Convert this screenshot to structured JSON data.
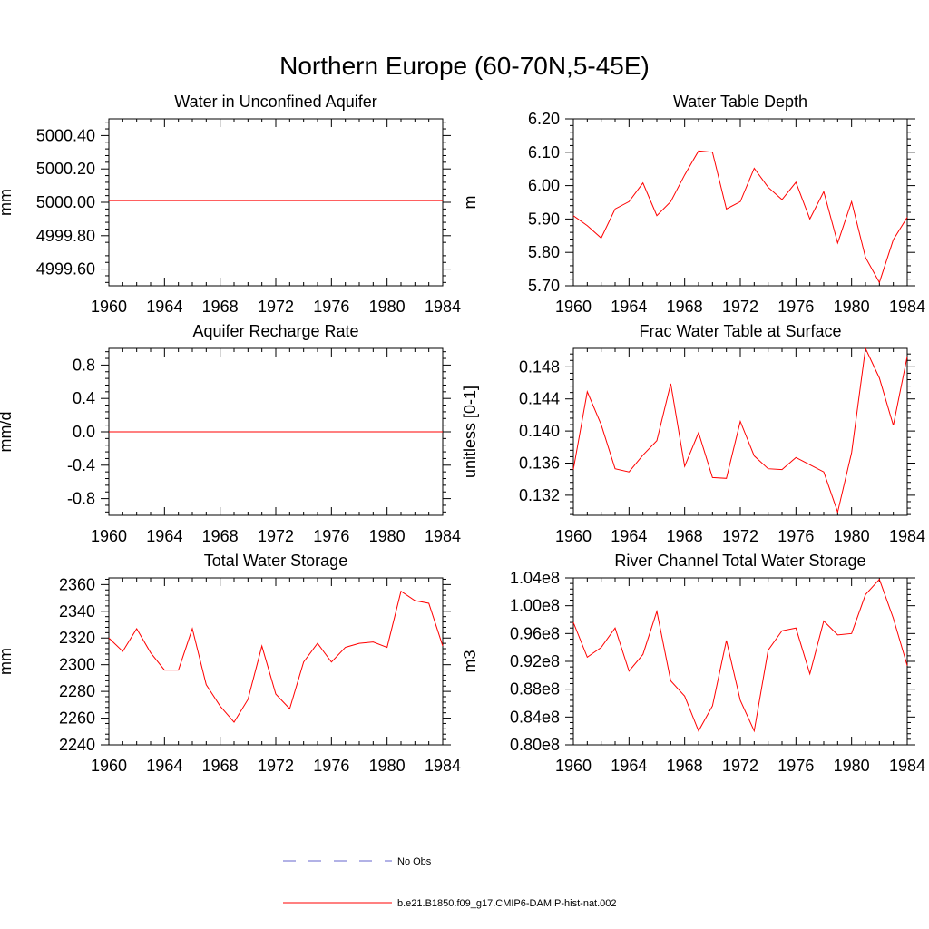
{
  "title": "Northern Europe (60-70N,5-45E)",
  "colors": {
    "model": "#ff0000",
    "obs": "#6666cc",
    "axis": "#000000"
  },
  "legend": {
    "position": "bottom-center",
    "entries": [
      {
        "label": "No Obs",
        "style": "dashed",
        "color": "#6666cc"
      },
      {
        "label": "b.e21.B1850.f09_g17.CMIP6-DAMIP-hist-nat.002",
        "style": "solid",
        "color": "#ff0000"
      }
    ]
  },
  "chart_data": [
    {
      "type": "line",
      "title": "Water in Unconfined Aquifer",
      "ylabel": "mm",
      "xlim": [
        1960,
        1984
      ],
      "ylim": [
        4999.5,
        5000.5
      ],
      "xticks": [
        1960,
        1964,
        1968,
        1972,
        1976,
        1980,
        1984
      ],
      "yticks": [
        4999.6,
        4999.8,
        5000.0,
        5000.2,
        5000.4
      ],
      "ytick_labels": [
        "4999.60",
        "4999.80",
        "5000.00",
        "5000.20",
        "5000.40"
      ],
      "x": [
        1960,
        1984
      ],
      "series": [
        {
          "values": [
            5000.01,
            5000.01
          ]
        }
      ]
    },
    {
      "type": "line",
      "title": "Water Table Depth",
      "ylabel": "m",
      "xlim": [
        1960,
        1984
      ],
      "ylim": [
        5.7,
        6.2
      ],
      "xticks": [
        1960,
        1964,
        1968,
        1972,
        1976,
        1980,
        1984
      ],
      "yticks": [
        5.7,
        5.8,
        5.9,
        6.0,
        6.1,
        6.2
      ],
      "ytick_labels": [
        "5.70",
        "5.80",
        "5.90",
        "6.00",
        "6.10",
        "6.20"
      ],
      "x": [
        1960,
        1961,
        1962,
        1963,
        1964,
        1965,
        1966,
        1967,
        1968,
        1969,
        1970,
        1971,
        1972,
        1973,
        1974,
        1975,
        1976,
        1977,
        1978,
        1979,
        1980,
        1981,
        1982,
        1983,
        1984
      ],
      "series": [
        {
          "values": [
            5.91,
            5.88,
            5.843,
            5.93,
            5.952,
            6.008,
            5.91,
            5.952,
            6.032,
            6.104,
            6.1,
            5.93,
            5.952,
            6.052,
            5.995,
            5.958,
            6.01,
            5.9,
            5.982,
            5.828,
            5.952,
            5.785,
            5.71,
            5.838,
            5.905
          ]
        }
      ]
    },
    {
      "type": "line",
      "title": "Aquifer Recharge Rate",
      "ylabel": "mm/d",
      "xlim": [
        1960,
        1984
      ],
      "ylim": [
        -1.0,
        1.0
      ],
      "xticks": [
        1960,
        1964,
        1968,
        1972,
        1976,
        1980,
        1984
      ],
      "yticks": [
        -0.8,
        -0.4,
        0.0,
        0.4,
        0.8
      ],
      "ytick_labels": [
        "-0.8",
        "-0.4",
        "0.0",
        "0.4",
        "0.8"
      ],
      "x": [
        1960,
        1984
      ],
      "series": [
        {
          "values": [
            0.0,
            0.0
          ]
        }
      ]
    },
    {
      "type": "line",
      "title": "Frac Water Table at Surface",
      "ylabel": "unitless [0-1]",
      "xlim": [
        1960,
        1984
      ],
      "ylim": [
        0.1295,
        0.1503
      ],
      "xticks": [
        1960,
        1964,
        1968,
        1972,
        1976,
        1980,
        1984
      ],
      "yticks": [
        0.132,
        0.136,
        0.14,
        0.144,
        0.148
      ],
      "ytick_labels": [
        "0.132",
        "0.136",
        "0.140",
        "0.144",
        "0.148"
      ],
      "x": [
        1960,
        1961,
        1962,
        1963,
        1964,
        1965,
        1966,
        1967,
        1968,
        1969,
        1970,
        1971,
        1972,
        1973,
        1974,
        1975,
        1976,
        1977,
        1978,
        1979,
        1980,
        1981,
        1982,
        1983,
        1984
      ],
      "series": [
        {
          "values": [
            0.1352,
            0.1449,
            0.1408,
            0.1353,
            0.1349,
            0.137,
            0.1388,
            0.1459,
            0.1356,
            0.1398,
            0.1342,
            0.1341,
            0.1412,
            0.1369,
            0.1353,
            0.1352,
            0.1367,
            0.1358,
            0.1349,
            0.1299,
            0.1373,
            0.1503,
            0.1466,
            0.1407,
            0.1493
          ]
        }
      ]
    },
    {
      "type": "line",
      "title": "Total Water Storage",
      "ylabel": "mm",
      "xlim": [
        1960,
        1984
      ],
      "ylim": [
        2240,
        2365
      ],
      "xticks": [
        1960,
        1964,
        1968,
        1972,
        1976,
        1980,
        1984
      ],
      "yticks": [
        2240,
        2260,
        2280,
        2300,
        2320,
        2340,
        2360
      ],
      "ytick_labels": [
        "2240",
        "2260",
        "2280",
        "2300",
        "2320",
        "2340",
        "2360"
      ],
      "x": [
        1960,
        1961,
        1962,
        1963,
        1964,
        1965,
        1966,
        1967,
        1968,
        1969,
        1970,
        1971,
        1972,
        1973,
        1974,
        1975,
        1976,
        1977,
        1978,
        1979,
        1980,
        1981,
        1982,
        1983,
        1984
      ],
      "series": [
        {
          "values": [
            2320,
            2310,
            2327,
            2309,
            2296,
            2296,
            2327,
            2285,
            2269,
            2257,
            2274,
            2314,
            2278,
            2267,
            2302,
            2316,
            2302,
            2313,
            2316,
            2317,
            2313,
            2355,
            2348,
            2346,
            2314
          ]
        }
      ]
    },
    {
      "type": "line",
      "title": "River Channel Total Water Storage",
      "ylabel": "m3",
      "xlim": [
        1960,
        1984
      ],
      "ylim": [
        80000000.0,
        104000000.0
      ],
      "xticks": [
        1960,
        1964,
        1968,
        1972,
        1976,
        1980,
        1984
      ],
      "yticks": [
        80000000.0,
        84000000.0,
        88000000.0,
        92000000.0,
        96000000.0,
        100000000.0,
        104000000.0
      ],
      "ytick_labels": [
        "0.80e8",
        "0.84e8",
        "0.88e8",
        "0.92e8",
        "0.96e8",
        "1.00e8",
        "1.04e8"
      ],
      "x": [
        1960,
        1961,
        1962,
        1963,
        1964,
        1965,
        1966,
        1967,
        1968,
        1969,
        1970,
        1971,
        1972,
        1973,
        1974,
        1975,
        1976,
        1977,
        1978,
        1979,
        1980,
        1981,
        1982,
        1983,
        1984
      ],
      "series": [
        {
          "values": [
            97600000.0,
            92600000.0,
            94000000.0,
            96800000.0,
            90600000.0,
            93000000.0,
            99200000.0,
            89200000.0,
            87000000.0,
            82000000.0,
            85600000.0,
            95000000.0,
            86400000.0,
            82000000.0,
            93600000.0,
            96400000.0,
            96800000.0,
            90200000.0,
            97800000.0,
            95800000.0,
            96000000.0,
            101600000.0,
            103800000.0,
            98200000.0,
            91400000.0
          ]
        }
      ]
    }
  ]
}
